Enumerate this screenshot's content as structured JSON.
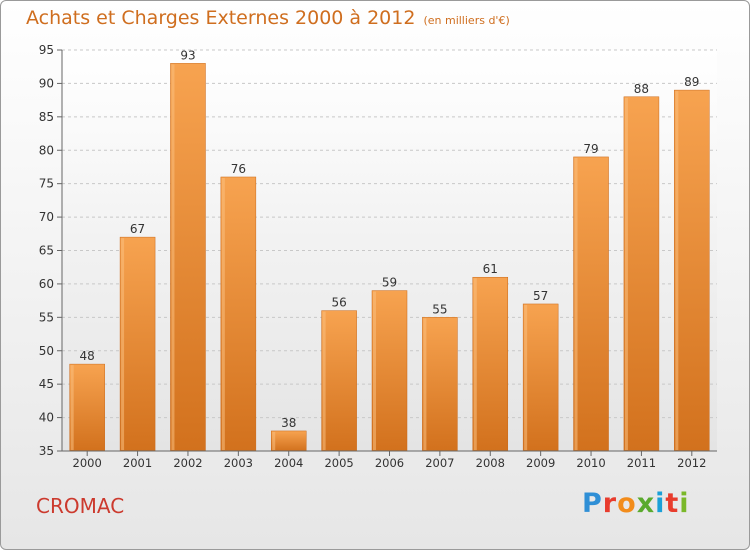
{
  "chart_data": {
    "type": "bar",
    "title": "Achats et Charges Externes 2000 à 2012",
    "subtitle": "(en milliers d'€)",
    "categories": [
      "2000",
      "2001",
      "2002",
      "2003",
      "2004",
      "2005",
      "2006",
      "2007",
      "2008",
      "2009",
      "2010",
      "2011",
      "2012"
    ],
    "values": [
      48,
      67,
      93,
      76,
      38,
      56,
      59,
      55,
      61,
      57,
      79,
      88,
      89
    ],
    "ylim": [
      35,
      95
    ],
    "yticks": [
      35,
      40,
      45,
      50,
      55,
      60,
      65,
      70,
      75,
      80,
      85,
      90,
      95
    ],
    "grid": "horizontal dashed",
    "bar_color": "#f0912f"
  },
  "commune": "CROMAC",
  "logo": {
    "letters": [
      "P",
      "r",
      "o",
      "x",
      "i",
      "t",
      "i"
    ],
    "colors": [
      "#2f8fd6",
      "#e83c2d",
      "#f28c1b",
      "#5aaa2e",
      "#1aa0d8",
      "#e83c2d",
      "#7ab829"
    ]
  }
}
